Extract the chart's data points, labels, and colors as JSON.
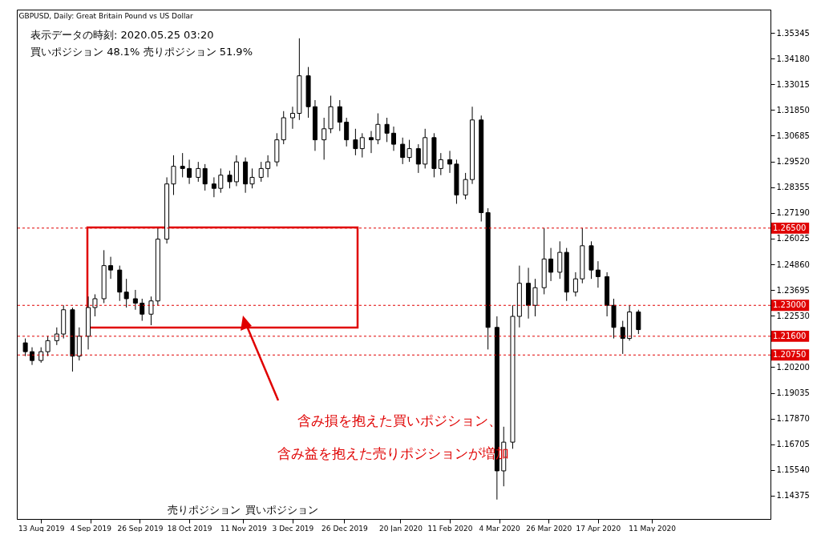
{
  "chart_data": {
    "type": "candlestick",
    "title": "GBPUSD, Daily: Great Britain Pound vs US Dollar",
    "annotations": [
      "表示データの時刻: 2020.05.25 03:20",
      "買いポジション 48.1% 売りポジション 51.9%",
      "売りポジション",
      "買いポジション",
      "含み損を抱えた買いポジション、",
      "含み益を抱えた売りポジションが増加"
    ],
    "x": [
      "2019-08-06",
      "2019-08-09",
      "2019-08-13",
      "2019-08-16",
      "2019-08-20",
      "2019-08-23",
      "2019-08-27",
      "2019-08-30",
      "2019-09-03",
      "2019-09-06",
      "2019-09-10",
      "2019-09-13",
      "2019-09-17",
      "2019-09-20",
      "2019-09-24",
      "2019-09-27",
      "2019-10-01",
      "2019-10-04",
      "2019-10-08",
      "2019-10-11",
      "2019-10-15",
      "2019-10-18",
      "2019-10-22",
      "2019-10-25",
      "2019-10-29",
      "2019-11-01",
      "2019-11-05",
      "2019-11-08",
      "2019-11-12",
      "2019-11-15",
      "2019-11-19",
      "2019-11-22",
      "2019-11-26",
      "2019-11-29",
      "2019-12-03",
      "2019-12-06",
      "2019-12-10",
      "2019-12-13",
      "2019-12-17",
      "2019-12-20",
      "2019-12-24",
      "2019-12-27",
      "2019-12-31",
      "2020-01-03",
      "2020-01-07",
      "2020-01-10",
      "2020-01-14",
      "2020-01-17",
      "2020-01-21",
      "2020-01-24",
      "2020-01-28",
      "2020-01-31",
      "2020-02-04",
      "2020-02-07",
      "2020-02-11",
      "2020-02-14",
      "2020-02-18",
      "2020-02-21",
      "2020-02-25",
      "2020-02-28",
      "2020-03-03",
      "2020-03-06",
      "2020-03-10",
      "2020-03-13",
      "2020-03-17",
      "2020-03-20",
      "2020-03-24",
      "2020-03-27",
      "2020-03-31",
      "2020-04-03",
      "2020-04-07",
      "2020-04-10",
      "2020-04-14",
      "2020-04-17",
      "2020-04-21",
      "2020-04-24",
      "2020-04-28",
      "2020-05-01",
      "2020-05-05"
    ],
    "ohlc": [
      [
        1.213,
        1.215,
        1.207,
        1.209
      ],
      [
        1.209,
        1.211,
        1.203,
        1.205
      ],
      [
        1.205,
        1.211,
        1.204,
        1.209
      ],
      [
        1.209,
        1.216,
        1.207,
        1.214
      ],
      [
        1.214,
        1.22,
        1.212,
        1.217
      ],
      [
        1.217,
        1.23,
        1.215,
        1.228
      ],
      [
        1.228,
        1.229,
        1.2,
        1.207
      ],
      [
        1.207,
        1.22,
        1.205,
        1.216
      ],
      [
        1.216,
        1.234,
        1.21,
        1.229
      ],
      [
        1.229,
        1.235,
        1.225,
        1.233
      ],
      [
        1.233,
        1.255,
        1.231,
        1.248
      ],
      [
        1.248,
        1.252,
        1.242,
        1.246
      ],
      [
        1.246,
        1.248,
        1.232,
        1.236
      ],
      [
        1.236,
        1.242,
        1.229,
        1.233
      ],
      [
        1.233,
        1.237,
        1.228,
        1.231
      ],
      [
        1.231,
        1.233,
        1.223,
        1.226
      ],
      [
        1.226,
        1.234,
        1.221,
        1.232
      ],
      [
        1.232,
        1.265,
        1.23,
        1.26
      ],
      [
        1.26,
        1.288,
        1.258,
        1.285
      ],
      [
        1.285,
        1.298,
        1.28,
        1.293
      ],
      [
        1.293,
        1.299,
        1.288,
        1.292
      ],
      [
        1.292,
        1.296,
        1.285,
        1.288
      ],
      [
        1.288,
        1.295,
        1.286,
        1.292
      ],
      [
        1.292,
        1.294,
        1.282,
        1.285
      ],
      [
        1.285,
        1.288,
        1.279,
        1.283
      ],
      [
        1.283,
        1.292,
        1.281,
        1.289
      ],
      [
        1.289,
        1.291,
        1.283,
        1.286
      ],
      [
        1.286,
        1.298,
        1.284,
        1.295
      ],
      [
        1.295,
        1.297,
        1.281,
        1.285
      ],
      [
        1.285,
        1.292,
        1.283,
        1.288
      ],
      [
        1.288,
        1.295,
        1.286,
        1.292
      ],
      [
        1.292,
        1.298,
        1.288,
        1.295
      ],
      [
        1.295,
        1.308,
        1.293,
        1.305
      ],
      [
        1.305,
        1.318,
        1.303,
        1.315
      ],
      [
        1.315,
        1.32,
        1.31,
        1.317
      ],
      [
        1.317,
        1.351,
        1.314,
        1.334
      ],
      [
        1.334,
        1.338,
        1.315,
        1.32
      ],
      [
        1.32,
        1.323,
        1.3,
        1.305
      ],
      [
        1.305,
        1.315,
        1.296,
        1.31
      ],
      [
        1.31,
        1.325,
        1.308,
        1.32
      ],
      [
        1.32,
        1.323,
        1.309,
        1.313
      ],
      [
        1.313,
        1.315,
        1.302,
        1.305
      ],
      [
        1.305,
        1.31,
        1.298,
        1.301
      ],
      [
        1.301,
        1.308,
        1.297,
        1.306
      ],
      [
        1.306,
        1.309,
        1.299,
        1.305
      ],
      [
        1.305,
        1.317,
        1.303,
        1.312
      ],
      [
        1.312,
        1.315,
        1.304,
        1.308
      ],
      [
        1.308,
        1.311,
        1.3,
        1.303
      ],
      [
        1.303,
        1.306,
        1.294,
        1.297
      ],
      [
        1.297,
        1.305,
        1.295,
        1.301
      ],
      [
        1.301,
        1.303,
        1.29,
        1.294
      ],
      [
        1.294,
        1.31,
        1.292,
        1.306
      ],
      [
        1.306,
        1.308,
        1.288,
        1.292
      ],
      [
        1.292,
        1.299,
        1.289,
        1.296
      ],
      [
        1.296,
        1.3,
        1.29,
        1.294
      ],
      [
        1.294,
        1.296,
        1.276,
        1.28
      ],
      [
        1.28,
        1.29,
        1.278,
        1.287
      ],
      [
        1.287,
        1.32,
        1.285,
        1.314
      ],
      [
        1.314,
        1.316,
        1.268,
        1.272
      ],
      [
        1.272,
        1.274,
        1.21,
        1.22
      ],
      [
        1.22,
        1.225,
        1.142,
        1.155
      ],
      [
        1.155,
        1.175,
        1.148,
        1.168
      ],
      [
        1.168,
        1.23,
        1.165,
        1.225
      ],
      [
        1.225,
        1.248,
        1.22,
        1.24
      ],
      [
        1.24,
        1.247,
        1.224,
        1.23
      ],
      [
        1.23,
        1.242,
        1.225,
        1.238
      ],
      [
        1.238,
        1.265,
        1.235,
        1.251
      ],
      [
        1.251,
        1.256,
        1.241,
        1.245
      ],
      [
        1.245,
        1.259,
        1.242,
        1.254
      ],
      [
        1.254,
        1.256,
        1.232,
        1.236
      ],
      [
        1.236,
        1.245,
        1.234,
        1.242
      ],
      [
        1.242,
        1.265,
        1.24,
        1.257
      ],
      [
        1.257,
        1.259,
        1.242,
        1.246
      ],
      [
        1.246,
        1.25,
        1.238,
        1.243
      ],
      [
        1.243,
        1.245,
        1.225,
        1.23
      ],
      [
        1.23,
        1.233,
        1.215,
        1.22
      ],
      [
        1.22,
        1.223,
        1.208,
        1.215
      ],
      [
        1.215,
        1.23,
        1.214,
        1.227
      ],
      [
        1.227,
        1.228,
        1.217,
        1.219
      ]
    ],
    "xlim": [
      "2019-08-04",
      "2020-07-01"
    ],
    "xticks": [
      {
        "value": "2019-08-13",
        "label": "13 Aug 2019"
      },
      {
        "value": "2019-09-04",
        "label": "4 Sep 2019"
      },
      {
        "value": "2019-09-26",
        "label": "26 Sep 2019"
      },
      {
        "value": "2019-10-18",
        "label": "18 Oct 2019"
      },
      {
        "value": "2019-11-11",
        "label": "11 Nov 2019"
      },
      {
        "value": "2019-12-03",
        "label": "3 Dec 2019"
      },
      {
        "value": "2019-12-26",
        "label": "26 Dec 2019"
      },
      {
        "value": "2020-01-20",
        "label": "20 Jan 2020"
      },
      {
        "value": "2020-02-11",
        "label": "11 Feb 2020"
      },
      {
        "value": "2020-03-04",
        "label": "4 Mar 2020"
      },
      {
        "value": "2020-03-26",
        "label": "26 Mar 2020"
      },
      {
        "value": "2020-04-17",
        "label": "17 Apr 2020"
      },
      {
        "value": "2020-05-11",
        "label": "11 May 2020"
      }
    ],
    "ylim": [
      1.1332,
      1.364
    ],
    "yticks": [
      {
        "value": 1.14375,
        "label": "1.14375"
      },
      {
        "value": 1.1554,
        "label": "1.15540"
      },
      {
        "value": 1.16705,
        "label": "1.16705"
      },
      {
        "value": 1.1787,
        "label": "1.17870"
      },
      {
        "value": 1.19035,
        "label": "1.19035"
      },
      {
        "value": 1.202,
        "label": "1.20200"
      },
      {
        "value": 1.2253,
        "label": "1.22530"
      },
      {
        "value": 1.23695,
        "label": "1.23695"
      },
      {
        "value": 1.2486,
        "label": "1.24860"
      },
      {
        "value": 1.26025,
        "label": "1.26025"
      },
      {
        "value": 1.2719,
        "label": "1.27190"
      },
      {
        "value": 1.28355,
        "label": "1.28355"
      },
      {
        "value": 1.2952,
        "label": "1.29520"
      },
      {
        "value": 1.30685,
        "label": "1.30685"
      },
      {
        "value": 1.3185,
        "label": "1.31850"
      },
      {
        "value": 1.33015,
        "label": "1.33015"
      },
      {
        "value": 1.3418,
        "label": "1.34180"
      },
      {
        "value": 1.35345,
        "label": "1.35345"
      }
    ],
    "ref_lines": [
      {
        "axis": "y",
        "value": 1.265,
        "label": "1.26500",
        "color": "#e00000",
        "line_style": "dashed"
      },
      {
        "axis": "y",
        "value": 1.23,
        "label": "1.23000",
        "color": "#e00000",
        "line_style": "dashed"
      },
      {
        "axis": "y",
        "value": 1.216,
        "label": "1.21600",
        "color": "#e00000",
        "line_style": "dashed"
      },
      {
        "axis": "y",
        "value": 1.2075,
        "label": "1.20750",
        "color": "#e00000",
        "line_style": "dashed"
      }
    ],
    "grid": false
  }
}
